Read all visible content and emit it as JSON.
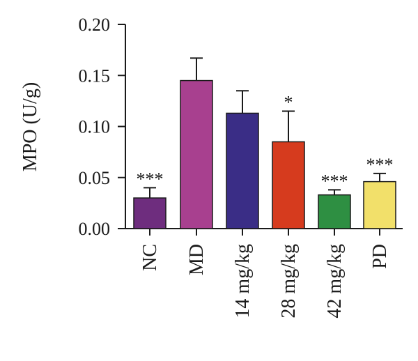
{
  "chart_data": {
    "type": "bar",
    "ylabel": "MPO (U/g)",
    "ylim": [
      0,
      0.2
    ],
    "yticks": [
      "0.00",
      "0.05",
      "0.10",
      "0.15",
      "0.20"
    ],
    "categories": [
      "NC",
      "MD",
      "14 mg/kg",
      "28 mg/kg",
      "42 mg/kg",
      "PD"
    ],
    "values": [
      0.03,
      0.145,
      0.113,
      0.085,
      0.033,
      0.046
    ],
    "errors": [
      0.01,
      0.022,
      0.022,
      0.03,
      0.005,
      0.008
    ],
    "significance": [
      "***",
      "",
      "",
      "*",
      "***",
      "***"
    ],
    "colors": [
      "#6e2d7e",
      "#a8408f",
      "#3a2d86",
      "#d63b1e",
      "#2e8f42",
      "#f2e06a"
    ],
    "grid": false
  }
}
